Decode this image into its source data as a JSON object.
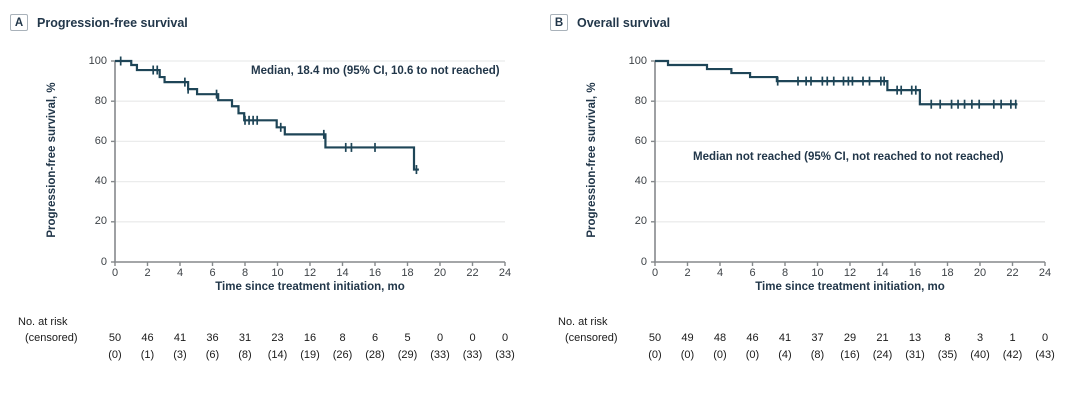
{
  "colors": {
    "curve": "#1e4557",
    "axis": "#85898c",
    "grid": "#ebecec",
    "title_text": "#22374a",
    "tick_text": "#3d4247"
  },
  "figure": {
    "panels": [
      {
        "letter": "A",
        "title": "Progression-free survival",
        "ylabel": "Progression-free survival, %",
        "xlabel": "Time since treatment initiation, mo",
        "annotation": "Median, 18.4 mo (95% CI, 10.6 to not reached)",
        "risk_label1": "No. at risk",
        "risk_label2": "(censored)"
      },
      {
        "letter": "B",
        "title": "Overall survival",
        "ylabel": "Progression-free survival, %",
        "xlabel": "Time since treatment initiation, mo",
        "annotation": "Median not reached (95% CI, not reached to not reached)",
        "risk_label1": "No. at risk",
        "risk_label2": "(censored)"
      }
    ]
  },
  "chart_data": [
    {
      "type": "line",
      "subtype": "kaplan-meier-step",
      "panel": "A",
      "title": "Progression-free survival",
      "xlabel": "Time since treatment initiation, mo",
      "ylabel": "Progression-free survival, %",
      "xlim": [
        0,
        24
      ],
      "ylim": [
        0,
        100
      ],
      "xticks": [
        0,
        2,
        4,
        6,
        8,
        10,
        12,
        14,
        16,
        18,
        20,
        22,
        24
      ],
      "yticks": [
        0,
        20,
        40,
        60,
        80,
        100
      ],
      "grid": "horizontal",
      "median_label": "Median, 18.4 mo (95% CI, 10.6 to not reached)",
      "steps": [
        [
          0,
          100
        ],
        [
          1.0,
          98
        ],
        [
          1.35,
          95.5
        ],
        [
          2.75,
          92
        ],
        [
          3.05,
          89.5
        ],
        [
          4.5,
          86
        ],
        [
          5.05,
          83.5
        ],
        [
          6.35,
          80.5
        ],
        [
          7.2,
          77.5
        ],
        [
          7.6,
          74
        ],
        [
          7.95,
          70.5
        ],
        [
          9.95,
          67
        ],
        [
          10.45,
          63.5
        ],
        [
          12.95,
          57
        ],
        [
          18.4,
          46
        ]
      ],
      "end_time": 18.7,
      "censor_marks": [
        0.35,
        2.35,
        2.6,
        4.3,
        4.5,
        6.25,
        8.0,
        8.25,
        8.5,
        8.75,
        10.2,
        12.85,
        14.2,
        14.55,
        16.0,
        18.55
      ],
      "at_risk_times": [
        0,
        2,
        4,
        6,
        8,
        10,
        12,
        14,
        16,
        18,
        20,
        22,
        24
      ],
      "at_risk": [
        "50",
        "46",
        "41",
        "36",
        "31",
        "23",
        "16",
        "8",
        "6",
        "5",
        "0",
        "0",
        "0"
      ],
      "censored": [
        "(0)",
        "(1)",
        "(3)",
        "(6)",
        "(8)",
        "(14)",
        "(19)",
        "(26)",
        "(28)",
        "(29)",
        "(33)",
        "(33)",
        "(33)"
      ]
    },
    {
      "type": "line",
      "subtype": "kaplan-meier-step",
      "panel": "B",
      "title": "Overall survival",
      "xlabel": "Time since treatment initiation, mo",
      "ylabel": "Progression-free survival, %",
      "xlim": [
        0,
        24
      ],
      "ylim": [
        0,
        100
      ],
      "xticks": [
        0,
        2,
        4,
        6,
        8,
        10,
        12,
        14,
        16,
        18,
        20,
        22,
        24
      ],
      "yticks": [
        0,
        20,
        40,
        60,
        80,
        100
      ],
      "grid": "horizontal",
      "median_label": "Median not reached (95% CI, not reached to not reached)",
      "steps": [
        [
          0,
          100
        ],
        [
          0.8,
          98
        ],
        [
          3.2,
          96
        ],
        [
          4.7,
          94
        ],
        [
          5.85,
          92
        ],
        [
          7.5,
          90
        ],
        [
          14.3,
          85.5
        ],
        [
          16.3,
          78.5
        ]
      ],
      "end_time": 22.3,
      "censor_marks": [
        7.55,
        8.8,
        9.3,
        9.6,
        10.3,
        10.6,
        11.0,
        11.6,
        11.9,
        12.15,
        12.8,
        13.2,
        13.9,
        14.1,
        14.9,
        15.15,
        15.8,
        16.05,
        17.0,
        17.55,
        18.25,
        18.65,
        19.05,
        19.5,
        19.95,
        20.85,
        21.3,
        21.9,
        22.2
      ],
      "at_risk_times": [
        0,
        2,
        4,
        6,
        8,
        10,
        12,
        14,
        16,
        18,
        20,
        22,
        24
      ],
      "at_risk": [
        "50",
        "49",
        "48",
        "46",
        "41",
        "37",
        "29",
        "21",
        "13",
        "8",
        "3",
        "1",
        "0"
      ],
      "censored": [
        "(0)",
        "(0)",
        "(0)",
        "(0)",
        "(4)",
        "(8)",
        "(16)",
        "(24)",
        "(31)",
        "(35)",
        "(40)",
        "(42)",
        "(43)"
      ]
    }
  ]
}
